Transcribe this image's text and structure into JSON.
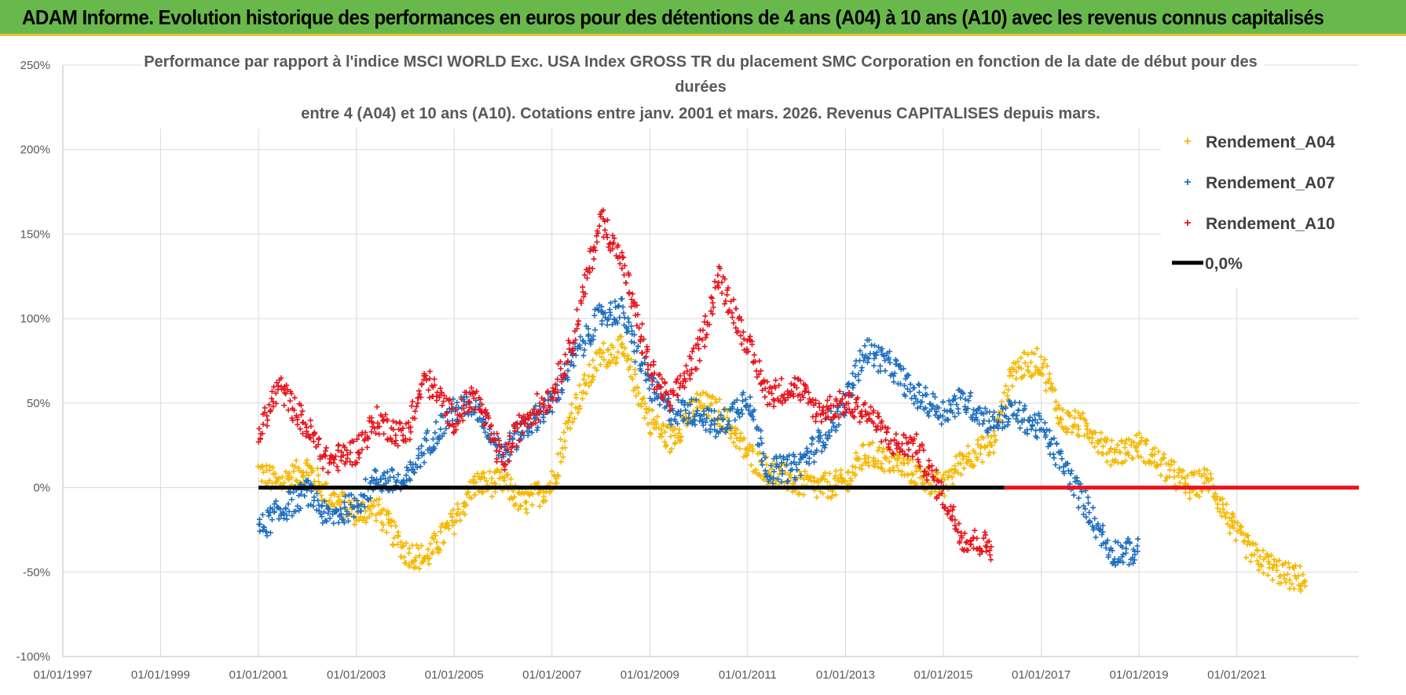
{
  "banner": {
    "title": "ADAM Informe. Evolution historique des performances en euros pour des détentions de 4 ans (A04) à 10 ans (A10) avec les revenus connus capitalisés",
    "background": "#69b84b"
  },
  "chart_data": {
    "type": "scatter",
    "title_lines": [
      "Performance par rapport à l'indice MSCI WORLD Exc. USA Index GROSS TR  du placement SMC Corporation en fonction de la date de début pour des",
      "durées",
      "entre 4 (A04) et 10 ans (A10).  Cotations entre janv. 2001 et mars. 2026.  Revenus CAPITALISES depuis mars."
    ],
    "x_ticks": [
      "01/01/1997",
      "01/01/1999",
      "01/01/2001",
      "01/01/2003",
      "01/01/2005",
      "01/01/2007",
      "01/01/2009",
      "01/01/2011",
      "01/01/2013",
      "01/01/2015",
      "01/01/2017",
      "01/01/2019",
      "01/01/2021"
    ],
    "y_ticks": [
      "250%",
      "200%",
      "150%",
      "100%",
      "50%",
      "0%",
      "-50%",
      "-100%"
    ],
    "xlim": [
      "1997-01-01",
      "2023-07-01"
    ],
    "ylim": [
      -1.0,
      2.5
    ],
    "grid": true,
    "legend_position": "top-right",
    "series": [
      {
        "name": "Rendement_A04",
        "color": "#f5b800",
        "marker": "+",
        "x": [
          "2001-01-01",
          "2001-06-01",
          "2002-01-01",
          "2002-06-01",
          "2003-01-01",
          "2003-06-01",
          "2004-01-01",
          "2004-06-01",
          "2005-01-01",
          "2005-06-01",
          "2006-01-01",
          "2006-06-01",
          "2007-01-01",
          "2007-06-01",
          "2008-01-01",
          "2008-06-01",
          "2009-01-01",
          "2009-06-01",
          "2010-01-01",
          "2010-06-01",
          "2011-01-01",
          "2011-06-01",
          "2012-01-01",
          "2012-06-01",
          "2013-01-01",
          "2013-06-01",
          "2014-01-01",
          "2014-06-01",
          "2015-01-01",
          "2015-06-01",
          "2016-01-01",
          "2016-06-01",
          "2017-01-01",
          "2017-06-01",
          "2018-01-01",
          "2018-06-01",
          "2019-01-01",
          "2019-06-01",
          "2020-01-01",
          "2020-06-01",
          "2021-01-01",
          "2021-06-01",
          "2022-01-01",
          "2022-06-01"
        ],
        "y": [
          0.1,
          0.02,
          0.12,
          -0.05,
          -0.15,
          -0.12,
          -0.38,
          -0.42,
          -0.2,
          0.02,
          0.03,
          -0.1,
          0.02,
          0.45,
          0.78,
          0.82,
          0.4,
          0.28,
          0.5,
          0.45,
          0.2,
          0.1,
          0.03,
          0.0,
          0.03,
          0.2,
          0.15,
          0.08,
          0.0,
          0.18,
          0.25,
          0.7,
          0.75,
          0.4,
          0.35,
          0.2,
          0.25,
          0.15,
          0.0,
          0.05,
          -0.28,
          -0.42,
          -0.52,
          -0.55
        ]
      },
      {
        "name": "Rendement_A07",
        "color": "#1f6fc0",
        "marker": "+",
        "x": [
          "2001-01-01",
          "2001-06-01",
          "2002-01-01",
          "2002-06-01",
          "2003-01-01",
          "2003-06-01",
          "2004-01-01",
          "2004-06-01",
          "2005-01-01",
          "2005-06-01",
          "2006-01-01",
          "2006-06-01",
          "2007-01-01",
          "2007-06-01",
          "2008-01-01",
          "2008-06-01",
          "2009-01-01",
          "2009-06-01",
          "2010-01-01",
          "2010-06-01",
          "2011-01-01",
          "2011-06-01",
          "2012-01-01",
          "2012-06-01",
          "2013-01-01",
          "2013-06-01",
          "2014-01-01",
          "2014-06-01",
          "2015-01-01",
          "2015-06-01",
          "2016-01-01",
          "2016-06-01",
          "2017-01-01",
          "2017-06-01",
          "2018-01-01",
          "2018-06-01",
          "2019-01-01"
        ],
        "y": [
          -0.25,
          -0.15,
          -0.02,
          -0.18,
          -0.1,
          0.05,
          0.02,
          0.25,
          0.45,
          0.5,
          0.2,
          0.35,
          0.5,
          0.75,
          1.02,
          1.05,
          0.6,
          0.45,
          0.45,
          0.35,
          0.55,
          0.1,
          0.12,
          0.25,
          0.5,
          0.82,
          0.7,
          0.55,
          0.45,
          0.52,
          0.38,
          0.45,
          0.35,
          0.15,
          -0.15,
          -0.38,
          -0.38
        ]
      },
      {
        "name": "Rendement_A10",
        "color": "#e8141c",
        "marker": "+",
        "x": [
          "2001-01-01",
          "2001-06-01",
          "2002-01-01",
          "2002-06-01",
          "2003-01-01",
          "2003-06-01",
          "2004-01-01",
          "2004-06-01",
          "2005-01-01",
          "2005-06-01",
          "2006-01-01",
          "2006-06-01",
          "2007-01-01",
          "2007-06-01",
          "2008-01-01",
          "2008-06-01",
          "2009-01-01",
          "2009-06-01",
          "2010-01-01",
          "2010-06-01",
          "2011-01-01",
          "2011-06-01",
          "2012-01-01",
          "2012-06-01",
          "2013-01-01",
          "2013-06-01",
          "2014-01-01",
          "2014-06-01",
          "2015-01-01",
          "2015-06-01",
          "2016-01-01"
        ],
        "y": [
          0.3,
          0.6,
          0.35,
          0.15,
          0.22,
          0.4,
          0.3,
          0.65,
          0.4,
          0.55,
          0.15,
          0.4,
          0.55,
          0.85,
          1.6,
          1.35,
          0.7,
          0.5,
          0.8,
          1.25,
          0.85,
          0.55,
          0.6,
          0.45,
          0.5,
          0.45,
          0.25,
          0.25,
          -0.05,
          -0.3,
          -0.35
        ]
      },
      {
        "name": "0,0%",
        "color": "#000000",
        "marker": "line",
        "x": [
          "2001-01-01",
          "2016-04-01"
        ],
        "y": [
          0.0,
          0.0
        ]
      },
      {
        "name": "",
        "color": "#e8141c",
        "marker": "line",
        "x": [
          "2016-04-01",
          "2023-07-01"
        ],
        "y": [
          0.0,
          0.0
        ]
      }
    ],
    "legend": [
      "Rendement_A04",
      "Rendement_A07",
      "Rendement_A10",
      "0,0%"
    ]
  }
}
